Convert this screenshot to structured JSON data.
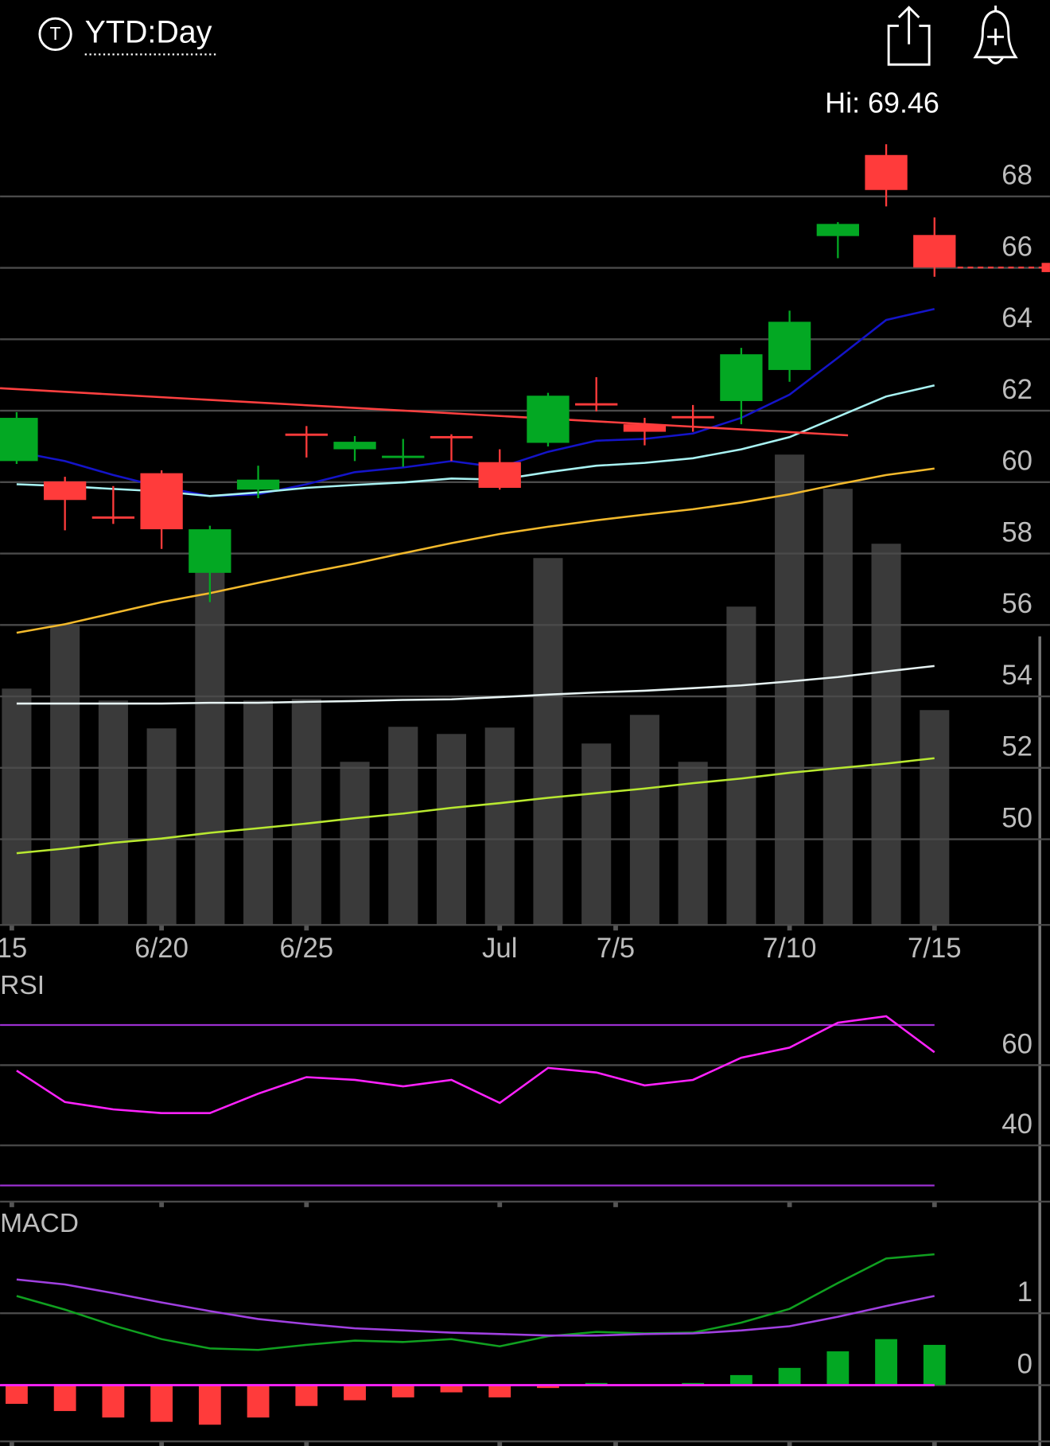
{
  "header": {
    "icon_letter": "T",
    "title": "YTD:Day"
  },
  "chart_data": [
    {
      "type": "candlestick",
      "annotation": "Hi: 69.46",
      "open": [
        60.59,
        60.02,
        59.04,
        60.25,
        57.46,
        59.79,
        61.36,
        60.92,
        60.69,
        61.29,
        60.56,
        61.1,
        62.21,
        61.62,
        61.85,
        62.27,
        63.14,
        66.89,
        69.16,
        66.92
      ],
      "high": [
        61.96,
        60.15,
        59.89,
        60.33,
        58.78,
        60.46,
        61.57,
        61.29,
        61.21,
        61.34,
        60.92,
        62.5,
        62.94,
        61.8,
        62.16,
        63.76,
        64.8,
        67.28,
        69.46,
        67.41
      ],
      "low": [
        60.51,
        58.65,
        58.83,
        58.13,
        56.64,
        59.55,
        60.69,
        60.59,
        60.43,
        60.59,
        59.79,
        61.0,
        61.98,
        61.03,
        61.41,
        61.62,
        62.81,
        66.27,
        67.72,
        65.75
      ],
      "close": [
        61.8,
        59.5,
        58.99,
        58.68,
        58.68,
        60.07,
        61.31,
        61.13,
        60.74,
        61.23,
        59.84,
        62.42,
        62.16,
        61.41,
        61.8,
        63.58,
        64.49,
        67.23,
        68.18,
        66.01
      ],
      "up_color": "#03a823",
      "down_color": "#ff3b3b",
      "xlim": [
        -0.3435,
        21.39
      ],
      "xticks": [
        {
          "value": -0.1,
          "label": "15"
        },
        {
          "value": 3,
          "label": "6/20"
        },
        {
          "value": 6,
          "label": "6/25"
        },
        {
          "value": 10,
          "label": "Jul"
        },
        {
          "value": 12.4,
          "label": "7/5"
        },
        {
          "value": 16,
          "label": "7/10"
        },
        {
          "value": 19,
          "label": "7/15"
        }
      ],
      "ylim": [
        47.6,
        69.885
      ],
      "yticks": [
        68,
        66,
        64,
        62,
        60,
        58,
        56,
        54,
        52,
        50
      ],
      "grid": true,
      "overlays": [
        {
          "color": "#1414c8",
          "values": [
            60.85,
            60.59,
            60.2,
            59.86,
            59.61,
            59.66,
            59.94,
            60.28,
            60.41,
            60.59,
            60.41,
            60.85,
            61.16,
            61.21,
            61.36,
            61.8,
            62.45,
            63.48,
            64.54,
            64.85
          ]
        },
        {
          "color": "#a8f2f2",
          "values": [
            59.94,
            59.89,
            59.81,
            59.74,
            59.61,
            59.71,
            59.84,
            59.92,
            59.99,
            60.1,
            60.07,
            60.28,
            60.46,
            60.54,
            60.67,
            60.92,
            61.26,
            61.83,
            62.4,
            62.71
          ]
        },
        {
          "color": "#f2b92c",
          "values": [
            55.78,
            56.02,
            56.33,
            56.64,
            56.89,
            57.18,
            57.46,
            57.72,
            58.01,
            58.29,
            58.55,
            58.75,
            58.93,
            59.09,
            59.24,
            59.43,
            59.66,
            59.94,
            60.2,
            60.38
          ]
        },
        {
          "color": "#e6f2f2",
          "values": [
            53.8,
            53.8,
            53.8,
            53.8,
            53.82,
            53.82,
            53.85,
            53.87,
            53.9,
            53.92,
            53.98,
            54.05,
            54.11,
            54.16,
            54.23,
            54.31,
            54.42,
            54.54,
            54.7,
            54.85
          ]
        },
        {
          "color": "#b8e830",
          "values": [
            49.61,
            49.74,
            49.9,
            50.02,
            50.18,
            50.31,
            50.44,
            50.59,
            50.72,
            50.88,
            51.01,
            51.16,
            51.29,
            51.42,
            51.57,
            51.7,
            51.86,
            51.99,
            52.12,
            52.27
          ]
        }
      ],
      "trendline": {
        "color": "#ff4040",
        "x": [
          -0.3435,
          17.21
        ],
        "values": [
          62.63,
          61.31
        ]
      },
      "volume": {
        "color": "#3a3a3a",
        "ylim": [
          0,
          100
        ],
        "values": [
          29.7,
          37.8,
          28.2,
          24.7,
          44.4,
          28.2,
          28.4,
          20.5,
          24.9,
          24.0,
          24.8,
          46.1,
          22.8,
          26.4,
          20.5,
          40.0,
          59.1,
          54.8,
          47.9,
          27.0
        ]
      }
    },
    {
      "type": "line",
      "title": "RSI",
      "ylim": [
        25.98,
        81.84
      ],
      "yticks": [
        60,
        40
      ],
      "grid": true,
      "levels": [
        70,
        30
      ],
      "level_color": "#9b30d0",
      "series": [
        {
          "color": "#ff22ff",
          "values": [
            58.62,
            50.8,
            48.97,
            48.05,
            48.05,
            52.87,
            57.01,
            56.32,
            54.71,
            56.32,
            50.57,
            59.31,
            58.16,
            54.94,
            56.32,
            61.84,
            64.37,
            70.57,
            72.18,
            63.22
          ]
        }
      ]
    },
    {
      "type": "macd",
      "title": "MACD",
      "ylim": [
        -0.782,
        2.462
      ],
      "yticks": [
        1,
        0
      ],
      "grid": true,
      "zero_color": "#ff22ff",
      "series": [
        {
          "color": "#10a020",
          "values": [
            1.24,
            1.05,
            0.83,
            0.64,
            0.51,
            0.49,
            0.56,
            0.62,
            0.6,
            0.64,
            0.54,
            0.68,
            0.74,
            0.72,
            0.73,
            0.87,
            1.06,
            1.42,
            1.76,
            1.82
          ]
        },
        {
          "color": "#a040e0",
          "values": [
            1.47,
            1.4,
            1.28,
            1.15,
            1.03,
            0.92,
            0.85,
            0.79,
            0.76,
            0.73,
            0.71,
            0.69,
            0.69,
            0.71,
            0.72,
            0.76,
            0.82,
            0.95,
            1.1,
            1.24
          ]
        }
      ],
      "histogram": {
        "up_color": "#03a823",
        "down_color": "#ff3b3b",
        "values": [
          -0.26,
          -0.36,
          -0.45,
          -0.51,
          -0.55,
          -0.45,
          -0.29,
          -0.21,
          -0.17,
          -0.1,
          -0.17,
          -0.04,
          0.03,
          0.01,
          0.03,
          0.14,
          0.24,
          0.47,
          0.64,
          0.56
        ]
      }
    }
  ]
}
